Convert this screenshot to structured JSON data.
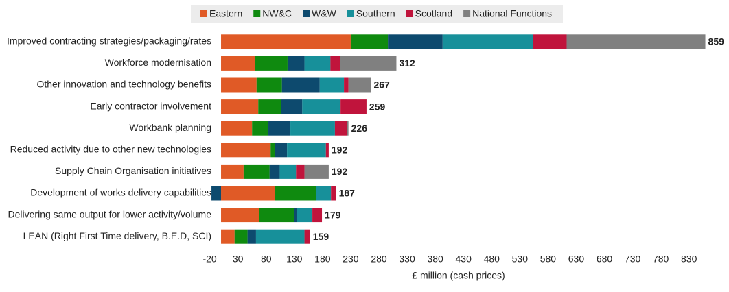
{
  "chart_data": {
    "type": "stacked-bar-horizontal",
    "categories": [
      "Improved contracting strategies/packaging/rates",
      "Workforce modernisation",
      "Other innovation and technology benefits",
      "Early contractor involvement",
      "Workbank planning",
      "Reduced activity due to other new technologies",
      "Supply Chain Organisation initiatives",
      "Development of works delivery capabilities",
      "Delivering same output for lower activity/volume",
      "LEAN (Right First Time delivery, B.E.D, SCI)"
    ],
    "series": [
      {
        "name": "Eastern",
        "color": "#e05a26",
        "values": [
          230,
          60,
          63,
          66,
          55,
          88,
          40,
          95,
          67,
          24
        ]
      },
      {
        "name": "NW&C",
        "color": "#0f8a0f",
        "values": [
          66,
          58,
          45,
          40,
          29,
          7,
          46,
          73,
          63,
          23
        ]
      },
      {
        "name": "W&W",
        "color": "#0d4a6e",
        "values": [
          97,
          30,
          67,
          38,
          39,
          22,
          18,
          -17,
          4,
          15
        ]
      },
      {
        "name": "Southern",
        "color": "#17909a",
        "values": [
          160,
          46,
          43,
          68,
          79,
          69,
          29,
          27,
          28,
          86
        ]
      },
      {
        "name": "Scotland",
        "color": "#c0143c",
        "values": [
          60,
          17,
          8,
          46,
          21,
          5,
          15,
          9,
          17,
          10
        ]
      },
      {
        "name": "National Functions",
        "color": "#808080",
        "values": [
          246,
          100,
          40,
          0,
          3,
          0,
          43,
          0,
          0,
          0
        ]
      }
    ],
    "totals": [
      859,
      312,
      267,
      259,
      226,
      192,
      192,
      187,
      179,
      159
    ],
    "xlim": [
      -20,
      862
    ],
    "xticks": [
      -20,
      30,
      80,
      130,
      180,
      230,
      280,
      330,
      380,
      430,
      480,
      530,
      580,
      630,
      680,
      730,
      780,
      830
    ],
    "xlabel": "£ million (cash prices)",
    "legend": "top"
  }
}
